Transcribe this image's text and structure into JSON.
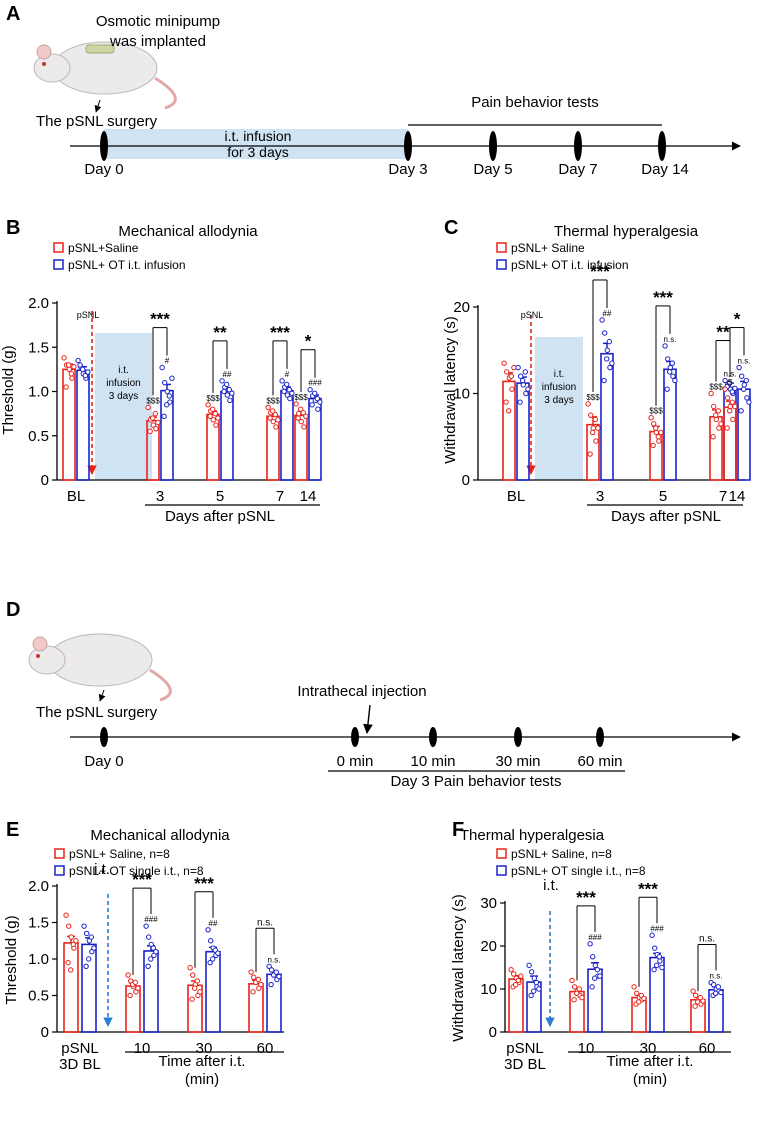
{
  "colors": {
    "saline": "#e8231b",
    "ot": "#1a23c9",
    "infusion_fill": "#cfe3f3",
    "axis": "#000000"
  },
  "panels": [
    {
      "id": "A",
      "letter": "A",
      "type": "timeline",
      "mouse_note": [
        "Osmotic minipump",
        "was implanted"
      ],
      "surgery_label": "The pSNL surgery",
      "bracket_label": "Pain behavior tests",
      "box_label": [
        "i.t. infusion",
        "for 3 days"
      ],
      "ticks": [
        "Day 0",
        "Day 3",
        "Day 5",
        "Day 7",
        "Day 14"
      ]
    },
    {
      "id": "D",
      "letter": "D",
      "type": "timeline",
      "surgery_label": "The pSNL surgery",
      "injection_label": "Intrathecal injection",
      "bracket_label": "Day 3 Pain behavior tests",
      "ticks": [
        "Day 0",
        "0 min",
        "10 min",
        "30 min",
        "60 min"
      ]
    }
  ],
  "chart_data": [
    {
      "panel": "B",
      "type": "bar",
      "title": "Mechanical allodynia",
      "legend": [
        "pSNL+Saline",
        "pSNL+ OT i.t. infusion"
      ],
      "ylabel": "Threshold (g)",
      "xlabel": "Days after pSNL",
      "ylim": [
        0,
        2.0
      ],
      "yticks": [
        "0",
        "0.5",
        "1.0",
        "1.5",
        "2.0"
      ],
      "categories": [
        "BL",
        "3",
        "5",
        "7",
        "14"
      ],
      "series": [
        {
          "name": "pSNL+Saline",
          "values": [
            1.25,
            0.67,
            0.74,
            0.72,
            0.73
          ],
          "sem": [
            0.06,
            0.04,
            0.04,
            0.04,
            0.04
          ]
        },
        {
          "name": "pSNL+ OT i.t. infusion",
          "values": [
            1.24,
            1.01,
            1.0,
            1.01,
            0.92
          ],
          "sem": [
            0.04,
            0.07,
            0.04,
            0.04,
            0.04
          ]
        }
      ],
      "points": [
        [
          [
            1.38,
            1.3,
            1.25,
            1.15,
            1.05,
            1.3,
            1.2,
            1.28
          ],
          [
            0.82,
            0.68,
            0.62,
            0.58,
            0.55,
            0.7,
            0.75,
            0.65
          ],
          [
            0.85,
            0.78,
            0.68,
            0.62,
            0.72,
            0.8,
            0.75,
            0.7
          ],
          [
            0.82,
            0.76,
            0.66,
            0.6,
            0.7,
            0.78,
            0.74,
            0.68
          ],
          [
            0.86,
            0.75,
            0.66,
            0.6,
            0.7,
            0.8,
            0.76,
            0.72
          ]
        ],
        [
          [
            1.35,
            1.28,
            1.2,
            1.15,
            1.3,
            1.25,
            1.18,
            1.22
          ],
          [
            1.27,
            1.1,
            1.0,
            0.88,
            0.72,
            0.85,
            0.95,
            1.15
          ],
          [
            1.12,
            1.05,
            0.96,
            0.9,
            1.0,
            1.08,
            1.02,
            0.98
          ],
          [
            1.12,
            1.05,
            0.96,
            0.92,
            1.0,
            1.08,
            1.02,
            0.98
          ],
          [
            1.02,
            0.95,
            0.9,
            0.8,
            0.85,
            0.98,
            0.92,
            0.88
          ]
        ]
      ],
      "saline_marks": [
        "",
        "$$$",
        "$$$",
        "$$$",
        "$$$"
      ],
      "ot_marks": [
        "",
        "#",
        "##",
        "#",
        "###"
      ],
      "brackets": [
        "",
        "***",
        "**",
        "***",
        "*"
      ],
      "event_label": "pSNL",
      "box_text": [
        "i.t.",
        "infusion",
        "3 days"
      ]
    },
    {
      "panel": "C",
      "type": "bar",
      "title": "Thermal hyperalgesia",
      "legend": [
        "pSNL+ Saline",
        "pSNL+ OT i.t. infusion"
      ],
      "ylabel": "Withdrawal latency (s)",
      "xlabel": "Days after pSNL",
      "ylim": [
        0,
        20
      ],
      "yticks": [
        "0",
        "10",
        "20"
      ],
      "categories": [
        "BL",
        "3",
        "5",
        "7",
        "14"
      ],
      "series": [
        {
          "name": "pSNL+ Saline",
          "values": [
            11.4,
            6.4,
            5.6,
            7.3,
            8.4
          ],
          "sem": [
            1.0,
            0.9,
            0.6,
            0.8,
            0.7
          ]
        },
        {
          "name": "pSNL+ OT i.t. infusion",
          "values": [
            11.2,
            14.6,
            12.8,
            10.7,
            10.5
          ],
          "sem": [
            0.7,
            1.2,
            0.9,
            0.5,
            0.9
          ]
        }
      ],
      "points": [
        [
          [
            13.5,
            12.5,
            11.8,
            10.5,
            9.0,
            8.0,
            12.0,
            13.0
          ],
          [
            8.8,
            7.5,
            6.0,
            4.5,
            3.0,
            5.5,
            7.0,
            6.0
          ],
          [
            7.2,
            6.5,
            5.5,
            4.5,
            4.0,
            6.0,
            5.0,
            5.5
          ],
          [
            10.0,
            8.5,
            7.0,
            6.0,
            5.0,
            7.5,
            8.0,
            6.5
          ],
          [
            10.5,
            9.5,
            8.5,
            7.0,
            6.0,
            8.0,
            9.0,
            8.5
          ]
        ],
        [
          [
            13.0,
            12.0,
            11.0,
            10.0,
            9.0,
            11.5,
            12.5,
            10.5
          ],
          [
            18.5,
            17.0,
            15.0,
            13.0,
            11.5,
            14.0,
            16.0,
            13.5
          ],
          [
            15.5,
            14.0,
            13.0,
            12.0,
            10.5,
            12.5,
            13.5,
            11.5
          ],
          [
            11.5,
            11.0,
            10.5,
            10.0,
            10.8,
            11.2,
            10.2,
            10.6
          ],
          [
            13.0,
            12.0,
            11.0,
            9.5,
            8.0,
            10.5,
            11.5,
            9.0
          ]
        ]
      ],
      "saline_marks": [
        "",
        "$$$",
        "$$$",
        "$$$",
        "$"
      ],
      "ot_marks": [
        "",
        "##",
        "n.s.",
        "n.s.",
        "n.s."
      ],
      "brackets": [
        "",
        "***",
        "***",
        "**",
        "*"
      ],
      "event_label": "pSNL",
      "box_text": [
        "i.t.",
        "infusion",
        "3 days"
      ]
    },
    {
      "panel": "E",
      "type": "bar",
      "title": "Mechanical allodynia",
      "legend": [
        "pSNL+ Saline, n=8",
        "pSNL+ OT single i.t., n=8"
      ],
      "ylabel": "Threshold (g)",
      "xlabel": [
        "Time after i.t.",
        "(min)"
      ],
      "ylim": [
        0,
        2.0
      ],
      "yticks": [
        "0",
        "0.5",
        "1.0",
        "1.5",
        "2.0"
      ],
      "categories": [
        "pSNL\n3D BL",
        "10",
        "30",
        "60"
      ],
      "series": [
        {
          "name": "pSNL+ Saline, n=8",
          "values": [
            1.22,
            0.63,
            0.64,
            0.66
          ],
          "sem": [
            0.09,
            0.04,
            0.06,
            0.05
          ]
        },
        {
          "name": "pSNL+ OT single i.t., n=8",
          "values": [
            1.2,
            1.11,
            1.1,
            0.79
          ],
          "sem": [
            0.09,
            0.07,
            0.06,
            0.04
          ]
        }
      ],
      "points": [
        [
          [
            1.6,
            1.45,
            1.3,
            1.15,
            0.95,
            0.85,
            1.2,
            1.25
          ],
          [
            0.78,
            0.7,
            0.62,
            0.55,
            0.5,
            0.65,
            0.68,
            0.6
          ],
          [
            0.88,
            0.78,
            0.65,
            0.5,
            0.45,
            0.6,
            0.7,
            0.55
          ],
          [
            0.82,
            0.75,
            0.7,
            0.6,
            0.55,
            0.68,
            0.72,
            0.65
          ]
        ],
        [
          [
            1.45,
            1.35,
            1.25,
            1.1,
            0.9,
            1.0,
            1.3,
            1.15
          ],
          [
            1.45,
            1.3,
            1.2,
            1.05,
            0.9,
            1.0,
            1.15,
            1.1
          ],
          [
            1.4,
            1.25,
            1.15,
            1.05,
            0.95,
            1.0,
            1.12,
            1.08
          ],
          [
            0.9,
            0.85,
            0.8,
            0.72,
            0.65,
            0.78,
            0.82,
            0.76
          ]
        ]
      ],
      "saline_marks": [
        "",
        "",
        "",
        ""
      ],
      "ot_marks": [
        "",
        "###",
        "##",
        "n.s."
      ],
      "brackets": [
        "",
        "***",
        "***",
        "n.s."
      ],
      "event_label": "i.t."
    },
    {
      "panel": "F",
      "type": "bar",
      "title": "Thermal hyperalgesia",
      "legend": [
        "pSNL+ Saline, n=8",
        "pSNL+ OT single i.t., n=8"
      ],
      "ylabel": "Withdrawal latency (s)",
      "xlabel": [
        "Time after i.t.",
        "(min)"
      ],
      "ylim": [
        0,
        30
      ],
      "yticks": [
        "0",
        "10",
        "20",
        "30"
      ],
      "categories": [
        "pSNL\n3D BL",
        "10",
        "30",
        "60"
      ],
      "series": [
        {
          "name": "pSNL+ Saline, n=8",
          "values": [
            12.3,
            9.4,
            8.0,
            7.5
          ],
          "sem": [
            0.8,
            0.8,
            0.6,
            0.6
          ]
        },
        {
          "name": "pSNL+ OT single i.t., n=8",
          "values": [
            11.6,
            14.6,
            17.3,
            9.8
          ],
          "sem": [
            1.4,
            1.5,
            1.0,
            0.7
          ]
        }
      ],
      "points": [
        [
          [
            14.5,
            13.5,
            12.5,
            11.5,
            10.5,
            11.0,
            12.0,
            13.0
          ],
          [
            12.0,
            10.5,
            9.5,
            8.5,
            7.5,
            9.0,
            10.0,
            8.0
          ],
          [
            10.5,
            9.0,
            8.0,
            7.5,
            6.5,
            7.0,
            8.5,
            7.8
          ],
          [
            9.5,
            8.5,
            7.5,
            6.5,
            6.0,
            7.0,
            8.0,
            7.2
          ]
        ],
        [
          [
            15.5,
            14.0,
            12.5,
            10.5,
            8.5,
            9.5,
            11.5,
            10.0
          ],
          [
            20.5,
            17.5,
            15.5,
            13.0,
            10.5,
            12.5,
            14.5,
            13.0
          ],
          [
            22.5,
            19.5,
            18.0,
            16.5,
            14.5,
            15.5,
            17.5,
            15.0
          ],
          [
            11.5,
            11.0,
            10.0,
            9.5,
            8.5,
            9.0,
            10.5,
            9.2
          ]
        ]
      ],
      "saline_marks": [
        "",
        "",
        "",
        ""
      ],
      "ot_marks": [
        "",
        "###",
        "###",
        "n.s."
      ],
      "brackets": [
        "",
        "***",
        "***",
        "n.s."
      ],
      "event_label": "i.t."
    }
  ]
}
